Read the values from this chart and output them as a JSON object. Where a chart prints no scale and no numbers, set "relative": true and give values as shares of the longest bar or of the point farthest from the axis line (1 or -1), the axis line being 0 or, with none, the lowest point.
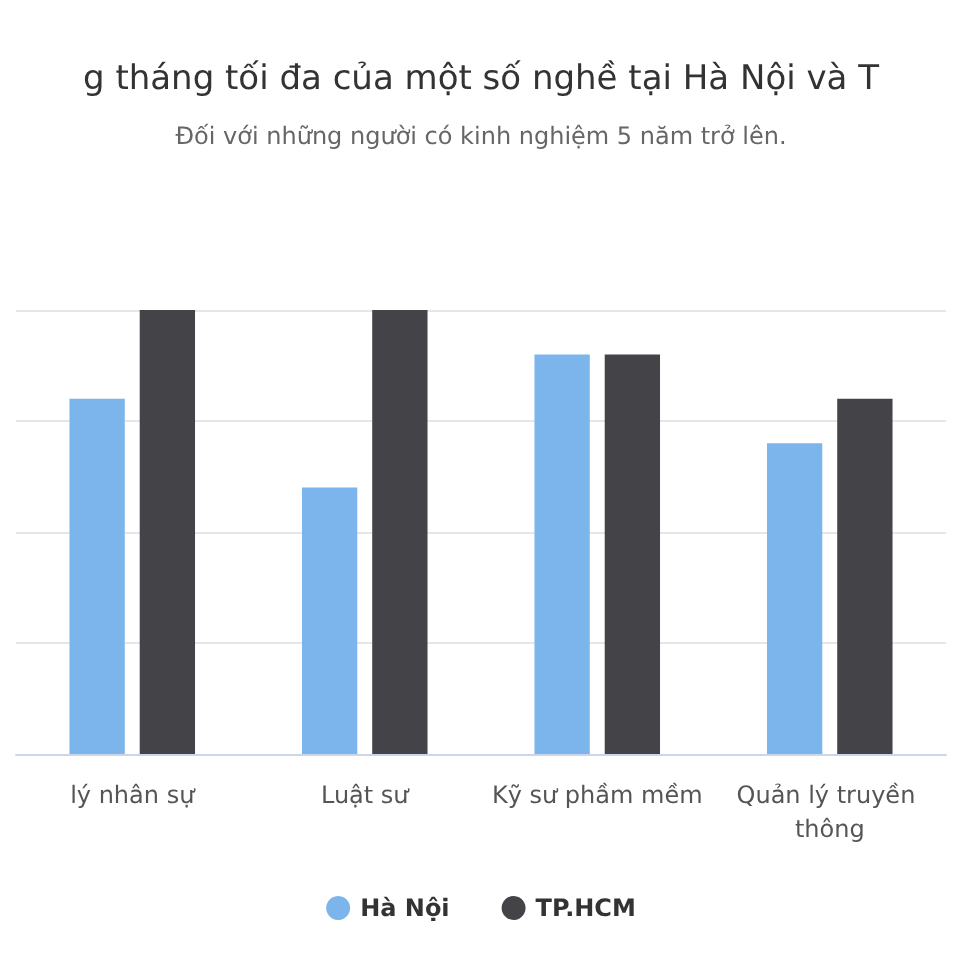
{
  "chart_data": {
    "type": "bar",
    "title": "g tháng tối đa của một số nghề tại Hà Nội và T",
    "subtitle": "Đối với những người có kinh nghiệm 5 năm trở lên.",
    "categories": [
      "lý nhân sự",
      "Luật sư",
      "Kỹ sư phầm mềm",
      "Quản lý truyền thông"
    ],
    "series": [
      {
        "name": "Hà Nội",
        "color": "#7cb5ec",
        "values": [
          0.8,
          0.6,
          0.9,
          0.7
        ]
      },
      {
        "name": "TP.HCM",
        "color": "#434348",
        "values": [
          1,
          1,
          0.9,
          0.8
        ]
      }
    ],
    "relative": true,
    "grid": "y",
    "legend": "bottom"
  }
}
